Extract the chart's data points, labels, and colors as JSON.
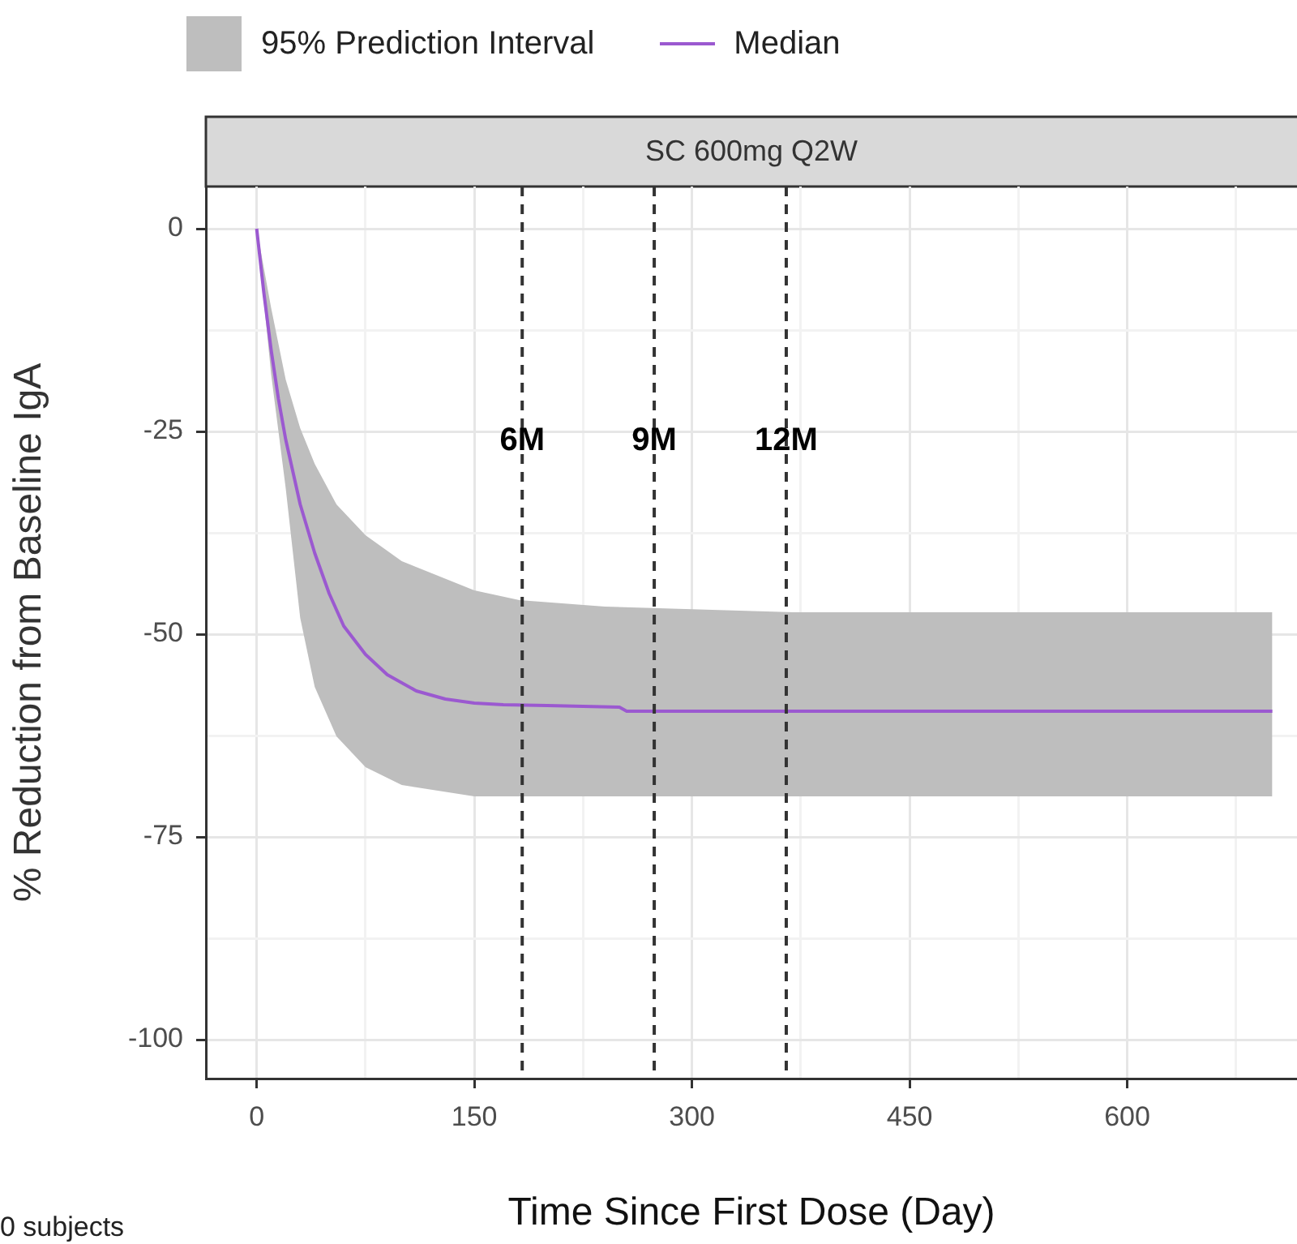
{
  "chart_data": {
    "type": "line",
    "title": "SC 600mg Q2W",
    "xlabel": "Time Since First Dose (Day)",
    "ylabel": "% Reduction from Baseline IgA",
    "xlim": [
      -35,
      717
    ],
    "xticks": [
      0,
      {
        "value": 75,
        "label": null
      },
      150,
      {
        "value": 225,
        "label": null
      },
      300,
      {
        "value": 375,
        "label": null
      },
      450,
      {
        "value": 525,
        "label": null
      },
      600,
      {
        "value": 675,
        "label": null
      }
    ],
    "ylim": [
      -104.8,
      5.2
    ],
    "yticks": [
      0,
      {
        "value": -12.5,
        "label": null
      },
      -25,
      {
        "value": -37.5,
        "label": null
      },
      -50,
      {
        "value": -62.5,
        "label": null
      },
      -75,
      {
        "value": -87.5,
        "label": null
      },
      -100
    ],
    "grid": true,
    "legend": "top",
    "marker": "none",
    "series": [
      {
        "name": "95% Prediction Interval",
        "type": "area",
        "color": "#bebebe",
        "x": [
          0,
          10,
          20,
          30,
          40,
          55,
          75,
          100,
          150,
          181,
          240,
          370,
          700
        ],
        "values": [
          null,
          null,
          null,
          null,
          null,
          null,
          null,
          null,
          null,
          null,
          null,
          null,
          null
        ],
        "lower": [
          0,
          -18,
          -32,
          -48,
          -56.5,
          -62.6,
          -66.4,
          -68.6,
          -70,
          -70,
          -70,
          -70,
          -70
        ],
        "upper": [
          0,
          -9.8,
          -18.6,
          -24.6,
          -29,
          -34,
          -37.8,
          -41,
          -44.6,
          -45.8,
          -46.6,
          -47.3,
          -47.3
        ]
      },
      {
        "name": "Median",
        "color": "#9b59d0",
        "line_style": "solid",
        "x": [
          0,
          5,
          10,
          15,
          20,
          30,
          40,
          50,
          60,
          75,
          90,
          110,
          130,
          150,
          170,
          200,
          250,
          255,
          700
        ],
        "values": [
          0,
          -8,
          -15,
          -21,
          -26,
          -34,
          -40,
          -45,
          -49,
          -52.5,
          -55,
          -57,
          -58,
          -58.5,
          -58.7,
          -58.8,
          -59,
          -59.5,
          -59.5
        ]
      }
    ],
    "ref_lines": [
      {
        "axis": "x",
        "value": 183,
        "label": "6M",
        "line_style": "dashed",
        "color": "#333333"
      },
      {
        "axis": "x",
        "value": 274,
        "label": "9M",
        "line_style": "dashed",
        "color": "#333333"
      },
      {
        "axis": "x",
        "value": 365,
        "label": "12M",
        "line_style": "dashed",
        "color": "#333333"
      }
    ],
    "annotations": [
      "0 subjects"
    ]
  }
}
